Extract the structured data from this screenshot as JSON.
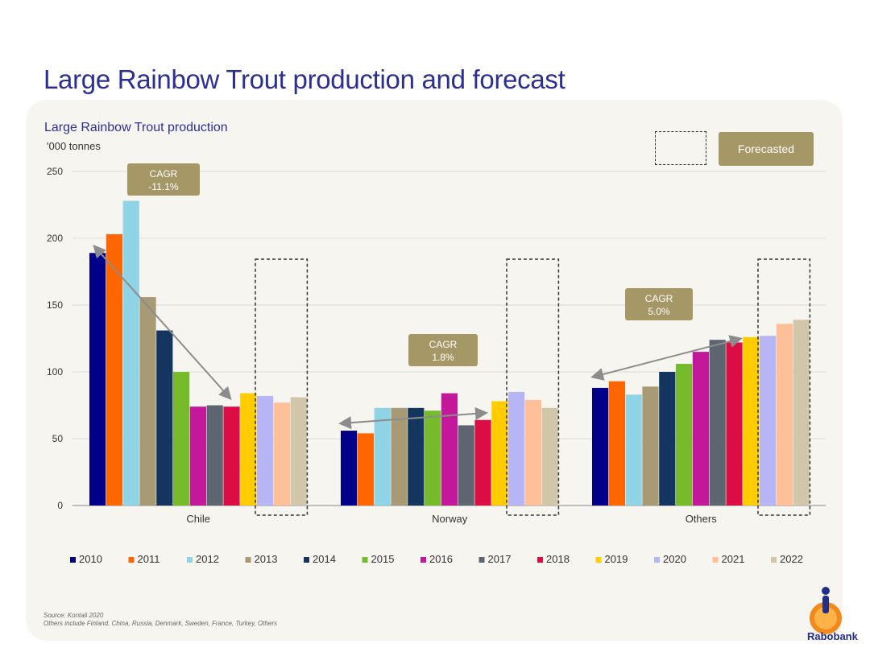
{
  "page": {
    "title": "Large Rainbow Trout production and forecast",
    "source": "Source: Kontali 2020",
    "note": "Others include Finland, China, Russia, Denmark, Sweden, France, Turkey, Others",
    "logo_text": "Rabobank"
  },
  "colors": {
    "title": "#2b2f94",
    "panel": "#f7f5ef",
    "callout": "#a69767"
  },
  "forecast_legend": {
    "label": "Forecasted"
  },
  "callouts": [
    {
      "line1": "CAGR",
      "line2": "-11.1%"
    },
    {
      "line1": "CAGR",
      "line2": "1.8%"
    },
    {
      "line1": "CAGR",
      "line2": "5.0%"
    }
  ],
  "chart_data": {
    "type": "bar",
    "title": "Large Rainbow Trout production",
    "ylabel": "'000 tonnes",
    "ylim": [
      0,
      250
    ],
    "yticks": [
      0,
      50,
      100,
      150,
      200,
      250
    ],
    "grid": true,
    "legend_position": "bottom",
    "categories": [
      "Chile",
      "Norway",
      "Others"
    ],
    "series": [
      {
        "name": "2010",
        "color": "#00008b",
        "values": [
          189,
          56,
          88
        ]
      },
      {
        "name": "2011",
        "color": "#ff6600",
        "values": [
          203,
          54,
          93
        ]
      },
      {
        "name": "2012",
        "color": "#8fd3e6",
        "values": [
          228,
          73,
          83
        ]
      },
      {
        "name": "2013",
        "color": "#a89a74",
        "values": [
          156,
          73,
          89
        ]
      },
      {
        "name": "2014",
        "color": "#14365e",
        "values": [
          131,
          73,
          100
        ]
      },
      {
        "name": "2015",
        "color": "#75bb2b",
        "values": [
          100,
          71,
          106
        ]
      },
      {
        "name": "2016",
        "color": "#c4189b",
        "values": [
          74,
          84,
          115
        ]
      },
      {
        "name": "2017",
        "color": "#5d6670",
        "values": [
          75,
          60,
          124
        ]
      },
      {
        "name": "2018",
        "color": "#dc0d45",
        "values": [
          74,
          64,
          122
        ]
      },
      {
        "name": "2019",
        "color": "#ffcc00",
        "values": [
          84,
          78,
          126
        ]
      },
      {
        "name": "2020",
        "color": "#b6b6f6",
        "values": [
          82,
          85,
          127
        ]
      },
      {
        "name": "2021",
        "color": "#ffbf99",
        "values": [
          77,
          79,
          136
        ]
      },
      {
        "name": "2022",
        "color": "#d1c6a9",
        "values": [
          81,
          73,
          139
        ]
      }
    ]
  }
}
